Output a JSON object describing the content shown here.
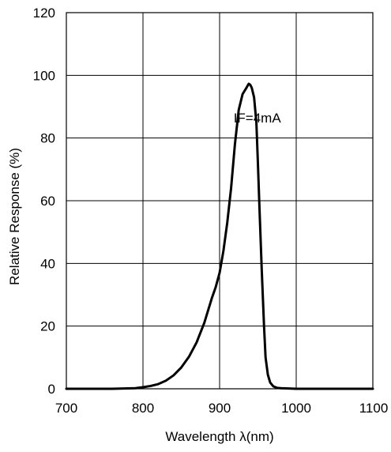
{
  "chart_data": {
    "type": "line",
    "title": "",
    "xlabel": "Wavelength λ(nm)",
    "ylabel": "Relative Response (%)",
    "xlim": [
      700,
      1100
    ],
    "ylim": [
      0,
      120
    ],
    "x_ticks": [
      700,
      800,
      900,
      1000,
      1100
    ],
    "y_ticks": [
      0,
      20,
      40,
      60,
      80,
      100,
      120
    ],
    "grid": true,
    "annotations": [
      {
        "text": "IF=4mA",
        "x": 910,
        "y": 86.5
      }
    ],
    "series": [
      {
        "x": [
          700,
          760,
          790,
          800,
          810,
          820,
          830,
          840,
          850,
          860,
          870,
          880,
          885,
          890,
          895,
          900,
          905,
          910,
          915,
          920,
          925,
          930,
          935,
          938,
          940,
          942,
          945,
          948,
          950,
          952,
          955,
          958,
          960,
          963,
          966,
          970,
          975,
          980,
          990,
          1000,
          1050,
          1100
        ],
        "y": [
          0,
          0,
          0.2,
          0.5,
          0.9,
          1.5,
          2.6,
          4.3,
          6.8,
          10.2,
          14.8,
          21,
          25,
          29,
          32.5,
          37,
          44,
          53,
          64,
          78,
          89,
          94,
          96,
          97.3,
          97,
          96,
          93,
          85,
          72,
          58,
          38,
          20,
          10,
          4.5,
          2,
          0.8,
          0.3,
          0.2,
          0.1,
          0,
          0,
          0
        ],
        "color": "#000000"
      }
    ]
  }
}
